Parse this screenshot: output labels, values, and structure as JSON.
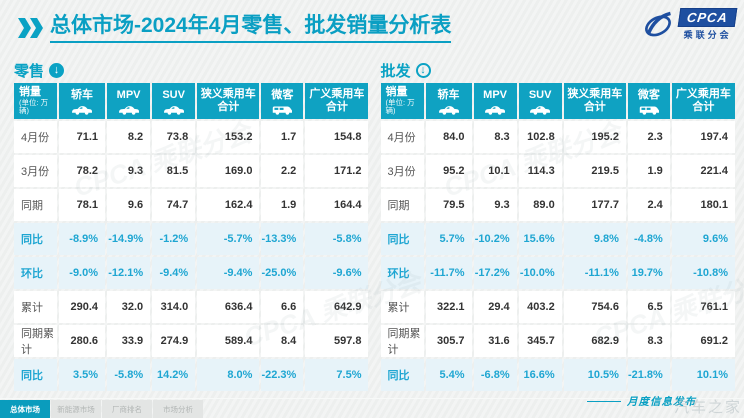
{
  "page": {
    "title_prefix": "总体市场",
    "title_rest": "-2024年4月零售、批发销量分析表",
    "footer_note": "月度信息发布",
    "watermark_text": "汽车之家",
    "ghost_watermark": "CPCA 乘联分会"
  },
  "logo": {
    "acronym": "CPCA",
    "subtext": "乘联分会"
  },
  "icons": {
    "down_arrow": "↓"
  },
  "colors": {
    "teal": "#0fa2c2",
    "title_teal": "#0a9fc3",
    "ratio_text": "#1fa6d2",
    "ratio_bg": "#e7f3f9",
    "logo_blue": "#1e4fa0",
    "active_tab": "#0a9cbd"
  },
  "columns": [
    {
      "label": "销量",
      "sub": "(单位: 万辆)"
    },
    {
      "label": "轿车",
      "icon": "car"
    },
    {
      "label": "MPV",
      "icon": "car"
    },
    {
      "label": "SUV",
      "icon": "car"
    },
    {
      "label": "狭义乘用车",
      "label2": "合计"
    },
    {
      "label": "微客",
      "icon": "van"
    },
    {
      "label": "广义乘用车",
      "label2": "合计"
    }
  ],
  "tables": [
    {
      "id": "retail",
      "section_label": "零售",
      "rows": [
        {
          "label": "4月份",
          "type": "data",
          "values": [
            "71.1",
            "8.2",
            "73.8",
            "153.2",
            "1.7",
            "154.8"
          ]
        },
        {
          "label": "3月份",
          "type": "data",
          "values": [
            "78.2",
            "9.3",
            "81.5",
            "169.0",
            "2.2",
            "171.2"
          ]
        },
        {
          "label": "同期",
          "type": "data",
          "values": [
            "78.1",
            "9.6",
            "74.7",
            "162.4",
            "1.9",
            "164.4"
          ]
        },
        {
          "label": "同比",
          "type": "ratio",
          "values": [
            "-8.9%",
            "-14.9%",
            "-1.2%",
            "-5.7%",
            "-13.3%",
            "-5.8%"
          ]
        },
        {
          "label": "环比",
          "type": "ratio",
          "values": [
            "-9.0%",
            "-12.1%",
            "-9.4%",
            "-9.4%",
            "-25.0%",
            "-9.6%"
          ]
        },
        {
          "label": "累计",
          "type": "data",
          "values": [
            "290.4",
            "32.0",
            "314.0",
            "636.4",
            "6.6",
            "642.9"
          ]
        },
        {
          "label": "同期累计",
          "type": "data",
          "values": [
            "280.6",
            "33.9",
            "274.9",
            "589.4",
            "8.4",
            "597.8"
          ]
        },
        {
          "label": "同比",
          "type": "ratio",
          "values": [
            "3.5%",
            "-5.8%",
            "14.2%",
            "8.0%",
            "-22.3%",
            "7.5%"
          ]
        }
      ]
    },
    {
      "id": "wholesale",
      "section_label": "批发",
      "rows": [
        {
          "label": "4月份",
          "type": "data",
          "values": [
            "84.0",
            "8.3",
            "102.8",
            "195.2",
            "2.3",
            "197.4"
          ]
        },
        {
          "label": "3月份",
          "type": "data",
          "values": [
            "95.2",
            "10.1",
            "114.3",
            "219.5",
            "1.9",
            "221.4"
          ]
        },
        {
          "label": "同期",
          "type": "data",
          "values": [
            "79.5",
            "9.3",
            "89.0",
            "177.7",
            "2.4",
            "180.1"
          ]
        },
        {
          "label": "同比",
          "type": "ratio",
          "values": [
            "5.7%",
            "-10.2%",
            "15.6%",
            "9.8%",
            "-4.8%",
            "9.6%"
          ]
        },
        {
          "label": "环比",
          "type": "ratio",
          "values": [
            "-11.7%",
            "-17.2%",
            "-10.0%",
            "-11.1%",
            "19.7%",
            "-10.8%"
          ]
        },
        {
          "label": "累计",
          "type": "data",
          "values": [
            "322.1",
            "29.4",
            "403.2",
            "754.6",
            "6.5",
            "761.1"
          ]
        },
        {
          "label": "同期累计",
          "type": "data",
          "values": [
            "305.7",
            "31.6",
            "345.7",
            "682.9",
            "8.3",
            "691.2"
          ]
        },
        {
          "label": "同比",
          "type": "ratio",
          "values": [
            "5.4%",
            "-6.8%",
            "16.6%",
            "10.5%",
            "-21.8%",
            "10.1%"
          ]
        }
      ]
    }
  ],
  "footer_tabs": [
    {
      "label": "总体市场",
      "active": true
    },
    {
      "label": "新能源市场",
      "active": false
    },
    {
      "label": "厂商排名",
      "active": false
    },
    {
      "label": "市场分析",
      "active": false
    }
  ],
  "chart_data": [
    {
      "type": "table",
      "title": "零售 (单位: 万辆)",
      "columns": [
        "销量",
        "轿车",
        "MPV",
        "SUV",
        "狭义乘用车合计",
        "微客",
        "广义乘用车合计"
      ],
      "rows": [
        [
          "4月份",
          71.1,
          8.2,
          73.8,
          153.2,
          1.7,
          154.8
        ],
        [
          "3月份",
          78.2,
          9.3,
          81.5,
          169.0,
          2.2,
          171.2
        ],
        [
          "同期",
          78.1,
          9.6,
          74.7,
          162.4,
          1.9,
          164.4
        ],
        [
          "同比",
          "-8.9%",
          "-14.9%",
          "-1.2%",
          "-5.7%",
          "-13.3%",
          "-5.8%"
        ],
        [
          "环比",
          "-9.0%",
          "-12.1%",
          "-9.4%",
          "-9.4%",
          "-25.0%",
          "-9.6%"
        ],
        [
          "累计",
          290.4,
          32.0,
          314.0,
          636.4,
          6.6,
          642.9
        ],
        [
          "同期累计",
          280.6,
          33.9,
          274.9,
          589.4,
          8.4,
          597.8
        ],
        [
          "同比",
          "3.5%",
          "-5.8%",
          "14.2%",
          "8.0%",
          "-22.3%",
          "7.5%"
        ]
      ]
    },
    {
      "type": "table",
      "title": "批发 (单位: 万辆)",
      "columns": [
        "销量",
        "轿车",
        "MPV",
        "SUV",
        "狭义乘用车合计",
        "微客",
        "广义乘用车合计"
      ],
      "rows": [
        [
          "4月份",
          84.0,
          8.3,
          102.8,
          195.2,
          2.3,
          197.4
        ],
        [
          "3月份",
          95.2,
          10.1,
          114.3,
          219.5,
          1.9,
          221.4
        ],
        [
          "同期",
          79.5,
          9.3,
          89.0,
          177.7,
          2.4,
          180.1
        ],
        [
          "同比",
          "5.7%",
          "-10.2%",
          "15.6%",
          "9.8%",
          "-4.8%",
          "9.6%"
        ],
        [
          "环比",
          "-11.7%",
          "-17.2%",
          "-10.0%",
          "-11.1%",
          "19.7%",
          "-10.8%"
        ],
        [
          "累计",
          322.1,
          29.4,
          403.2,
          754.6,
          6.5,
          761.1
        ],
        [
          "同期累计",
          305.7,
          31.6,
          345.7,
          682.9,
          8.3,
          691.2
        ],
        [
          "同比",
          "5.4%",
          "-6.8%",
          "16.6%",
          "10.5%",
          "-21.8%",
          "10.1%"
        ]
      ]
    }
  ]
}
